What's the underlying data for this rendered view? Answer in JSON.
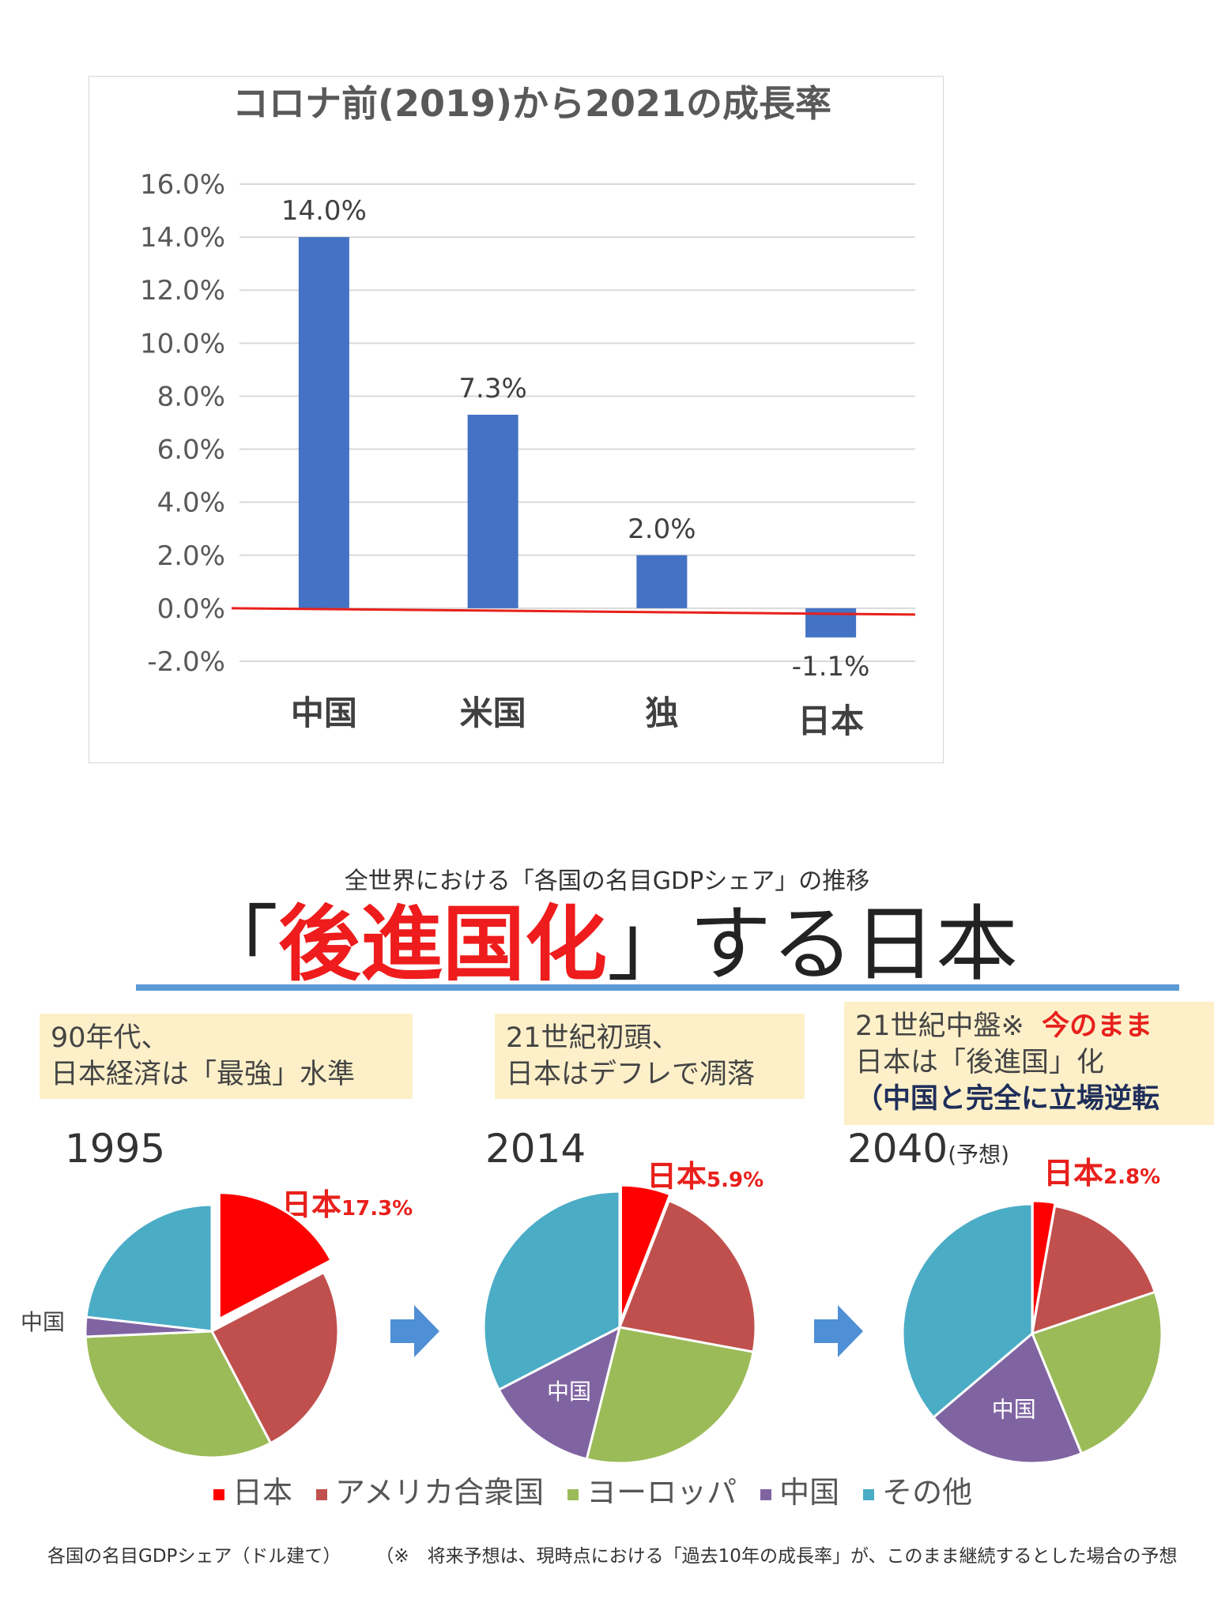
{
  "chart_data": [
    {
      "type": "bar",
      "title": "コロナ前(2019)から2021の成長率",
      "categories": [
        "中国",
        "米国",
        "独",
        "日本"
      ],
      "values": [
        14.0,
        7.3,
        2.0,
        -1.1
      ],
      "data_labels": [
        "14.0%",
        "7.3%",
        "2.0%",
        "-1.1%"
      ],
      "yticks": [
        16,
        14,
        12,
        10,
        8,
        6,
        4,
        2,
        0,
        -2
      ],
      "ytick_labels": [
        "16.0%",
        "14.0%",
        "12.0%",
        "10.0%",
        "8.0%",
        "6.0%",
        "4.0%",
        "2.0%",
        "0.0%",
        "-2.0%"
      ],
      "ylim": [
        -2,
        16
      ],
      "grid": true,
      "bar_color": "#4472c4",
      "zero_line_color": "#e8201c"
    },
    {
      "type": "pie",
      "year": "1995",
      "slices": [
        {
          "series": "日本",
          "value": 17.3,
          "label": "日本",
          "pct_label": "17.3%"
        },
        {
          "series": "アメリカ合衆国",
          "value": 25
        },
        {
          "series": "ヨーロッパ",
          "value": 32
        },
        {
          "series": "中国",
          "value": 2.5,
          "label": "中国"
        },
        {
          "series": "その他",
          "value": 23.2
        }
      ]
    },
    {
      "type": "pie",
      "year": "2014",
      "slices": [
        {
          "series": "日本",
          "value": 5.9,
          "label": "日本",
          "pct_label": "5.9%"
        },
        {
          "series": "アメリカ合衆国",
          "value": 22
        },
        {
          "series": "ヨーロッパ",
          "value": 26
        },
        {
          "series": "中国",
          "value": 13.5,
          "label": "中国"
        },
        {
          "series": "その他",
          "value": 32.6
        }
      ]
    },
    {
      "type": "pie",
      "year": "2040",
      "year_note": "(予想)",
      "slices": [
        {
          "series": "日本",
          "value": 2.8,
          "label": "日本",
          "pct_label": "2.8%"
        },
        {
          "series": "アメリカ合衆国",
          "value": 17
        },
        {
          "series": "ヨーロッパ",
          "value": 24
        },
        {
          "series": "中国",
          "value": 20,
          "label": "中国"
        },
        {
          "series": "その他",
          "value": 36.2
        }
      ]
    }
  ],
  "infographic": {
    "subtitle": "全世界における「各国の名目GDPシェア」の推移",
    "headline_open": "「",
    "headline_red": "後進国化",
    "headline_close": "」する日本",
    "notes": [
      {
        "line1": "90年代、",
        "line2": "日本経済は「最強」水準"
      },
      {
        "line1": "21世紀初頭、",
        "line2": "日本はデフレで凋落"
      },
      {
        "line1a": "21世紀中盤※",
        "line1b": "今のまま",
        "line2": "日本は「後進国」化",
        "line3": "（中国と完全に立場逆転"
      }
    ],
    "legend": [
      {
        "label": "日本",
        "color": "#ff0000"
      },
      {
        "label": "アメリカ合衆国",
        "color": "#c0504d"
      },
      {
        "label": "ヨーロッパ",
        "color": "#9bbb59"
      },
      {
        "label": "中国",
        "color": "#8064a2"
      },
      {
        "label": "その他",
        "color": "#4bacc6"
      }
    ],
    "arrow_color": "#4f8fd6",
    "footer_left": "各国の名目GDPシェア（ドル建て）",
    "footer_right": "（※　将来予想は、現時点における「過去10年の成長率」が、このまま継続するとした場合の予想"
  }
}
